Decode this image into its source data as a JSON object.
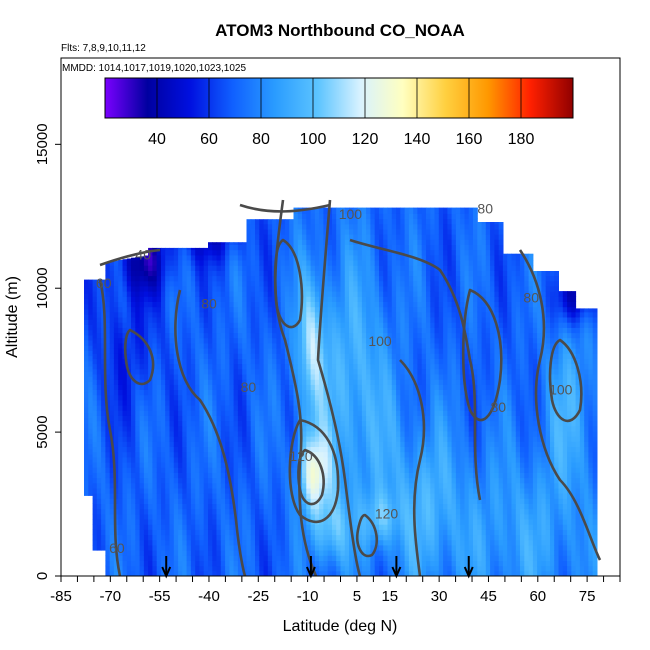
{
  "chart_data": {
    "type": "heatmap",
    "title": "ATOM3 Northbound CO_NOAA",
    "flights_label": "Flts: 7,8,9,10,11,12",
    "dates_label": "MMDD: 1014,1017,1019,1020,1023,1025",
    "xlabel": "Latitude (deg N)",
    "ylabel": "Altitude (m)",
    "xlim": [
      -85,
      85
    ],
    "ylim": [
      0,
      18000
    ],
    "x_ticks": [
      "-85",
      "-70",
      "-55",
      "-40",
      "-25",
      "-10",
      "5",
      "15",
      "30",
      "45",
      "60",
      "75"
    ],
    "x_tick_values": [
      -85,
      -70,
      -55,
      -40,
      -25,
      -10,
      5,
      15,
      30,
      45,
      60,
      75
    ],
    "y_ticks": [
      "0",
      "5000",
      "10000",
      "15000"
    ],
    "y_tick_values": [
      0,
      5000,
      10000,
      15000
    ],
    "colorbar": {
      "range": [
        20,
        200
      ],
      "ticks": [
        "40",
        "60",
        "80",
        "100",
        "120",
        "140",
        "160",
        "180"
      ],
      "tick_values": [
        40,
        60,
        80,
        100,
        120,
        140,
        160,
        180
      ],
      "colors": [
        "#7a00ff",
        "#0000a0",
        "#0010e0",
        "#1060ff",
        "#2a9cff",
        "#5cc4ff",
        "#d8f2ff",
        "#ffffc0",
        "#ffd040",
        "#ff9800",
        "#ff2000",
        "#900000"
      ]
    },
    "flight_markers_lat": [
      -53,
      -9,
      17,
      39
    ],
    "contour_labels": [
      {
        "text": "100",
        "lat": 3,
        "alt": 12400
      },
      {
        "text": "80",
        "lat": 44,
        "alt": 12600
      },
      {
        "text": "40",
        "lat": -60,
        "alt": 11000
      },
      {
        "text": "60",
        "lat": -72,
        "alt": 10000
      },
      {
        "text": "80",
        "lat": -40,
        "alt": 9300
      },
      {
        "text": "100",
        "lat": 12,
        "alt": 8000
      },
      {
        "text": "80",
        "lat": -28,
        "alt": 6400
      },
      {
        "text": "100",
        "lat": 67,
        "alt": 6300
      },
      {
        "text": "80",
        "lat": 58,
        "alt": 9500
      },
      {
        "text": "80",
        "lat": 48,
        "alt": 5700
      },
      {
        "text": "120",
        "lat": -12,
        "alt": 4000
      },
      {
        "text": "120",
        "lat": 14,
        "alt": 2000
      },
      {
        "text": "60",
        "lat": -68,
        "alt": 800
      }
    ]
  }
}
